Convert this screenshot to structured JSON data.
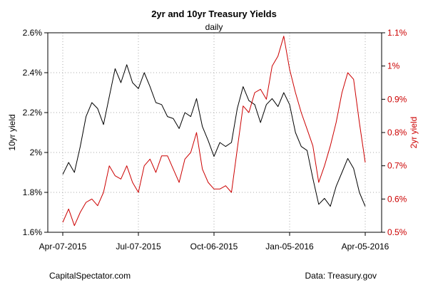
{
  "chart_data": {
    "type": "line",
    "title": "2yr and 10yr Treasury Yields",
    "subtitle": "daily",
    "ylabel_left": "10yr yield",
    "ylabel_right": "2yr yield",
    "x_ticks": [
      "Apr-07-2015",
      "Jul-07-2015",
      "Oct-06-2015",
      "Jan-05-2016",
      "Apr-05-2016"
    ],
    "y_left_ticks": [
      "1.6%",
      "1.8%",
      "2%",
      "2.2%",
      "2.4%",
      "2.6%"
    ],
    "y_right_ticks": [
      "0.5%",
      "0.6%",
      "0.7%",
      "0.8%",
      "0.9%",
      "1%",
      "1.1%"
    ],
    "ylim_left": [
      1.6,
      2.6
    ],
    "ylim_right": [
      0.5,
      1.1
    ],
    "grid": true,
    "colors": {
      "ten_year": "#000000",
      "two_year": "#cc0000"
    },
    "series": [
      {
        "axis": "left",
        "x": [
          "2015-04-07",
          "2015-04-14",
          "2015-04-21",
          "2015-04-28",
          "2015-05-05",
          "2015-05-12",
          "2015-05-19",
          "2015-05-26",
          "2015-06-02",
          "2015-06-09",
          "2015-06-16",
          "2015-06-23",
          "2015-06-30",
          "2015-07-07",
          "2015-07-14",
          "2015-07-21",
          "2015-07-28",
          "2015-08-04",
          "2015-08-11",
          "2015-08-18",
          "2015-08-25",
          "2015-09-01",
          "2015-09-08",
          "2015-09-15",
          "2015-09-22",
          "2015-09-29",
          "2015-10-06",
          "2015-10-13",
          "2015-10-20",
          "2015-10-27",
          "2015-11-03",
          "2015-11-10",
          "2015-11-17",
          "2015-11-24",
          "2015-12-01",
          "2015-12-08",
          "2015-12-15",
          "2015-12-22",
          "2015-12-29",
          "2016-01-05",
          "2016-01-12",
          "2016-01-19",
          "2016-01-26",
          "2016-02-02",
          "2016-02-09",
          "2016-02-16",
          "2016-02-23",
          "2016-03-01",
          "2016-03-08",
          "2016-03-15",
          "2016-03-22",
          "2016-03-29",
          "2016-04-05"
        ],
        "y": [
          1.89,
          1.95,
          1.9,
          2.03,
          2.18,
          2.25,
          2.22,
          2.14,
          2.28,
          2.42,
          2.35,
          2.44,
          2.35,
          2.32,
          2.4,
          2.33,
          2.25,
          2.24,
          2.18,
          2.17,
          2.12,
          2.2,
          2.18,
          2.27,
          2.13,
          2.06,
          1.98,
          2.05,
          2.03,
          2.05,
          2.22,
          2.33,
          2.26,
          2.24,
          2.15,
          2.24,
          2.27,
          2.23,
          2.3,
          2.24,
          2.1,
          2.03,
          2.01,
          1.87,
          1.74,
          1.77,
          1.73,
          1.83,
          1.9,
          1.97,
          1.92,
          1.8,
          1.73
        ]
      },
      {
        "axis": "right",
        "x": [
          "2015-04-07",
          "2015-04-14",
          "2015-04-21",
          "2015-04-28",
          "2015-05-05",
          "2015-05-12",
          "2015-05-19",
          "2015-05-26",
          "2015-06-02",
          "2015-06-09",
          "2015-06-16",
          "2015-06-23",
          "2015-06-30",
          "2015-07-07",
          "2015-07-14",
          "2015-07-21",
          "2015-07-28",
          "2015-08-04",
          "2015-08-11",
          "2015-08-18",
          "2015-08-25",
          "2015-09-01",
          "2015-09-08",
          "2015-09-15",
          "2015-09-22",
          "2015-09-29",
          "2015-10-06",
          "2015-10-13",
          "2015-10-20",
          "2015-10-27",
          "2015-11-03",
          "2015-11-10",
          "2015-11-17",
          "2015-11-24",
          "2015-12-01",
          "2015-12-08",
          "2015-12-15",
          "2015-12-22",
          "2015-12-29",
          "2016-01-05",
          "2016-01-12",
          "2016-01-19",
          "2016-01-26",
          "2016-02-02",
          "2016-02-09",
          "2016-02-16",
          "2016-02-23",
          "2016-03-01",
          "2016-03-08",
          "2016-03-15",
          "2016-03-22",
          "2016-03-29",
          "2016-04-05"
        ],
        "y": [
          0.53,
          0.57,
          0.52,
          0.56,
          0.59,
          0.6,
          0.58,
          0.62,
          0.7,
          0.67,
          0.66,
          0.7,
          0.65,
          0.62,
          0.7,
          0.72,
          0.68,
          0.73,
          0.73,
          0.69,
          0.65,
          0.72,
          0.74,
          0.8,
          0.69,
          0.65,
          0.63,
          0.63,
          0.64,
          0.62,
          0.75,
          0.88,
          0.86,
          0.92,
          0.93,
          0.9,
          1.0,
          1.03,
          1.09,
          0.99,
          0.92,
          0.86,
          0.81,
          0.76,
          0.65,
          0.7,
          0.76,
          0.83,
          0.92,
          0.98,
          0.96,
          0.83,
          0.71
        ]
      }
    ]
  },
  "footer": {
    "left": "CapitalSpectator.com",
    "right": "Data: Treasury.gov"
  }
}
